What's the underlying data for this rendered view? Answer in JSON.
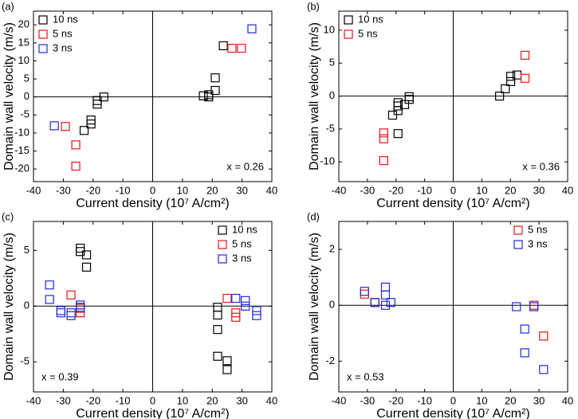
{
  "chart_data": [
    {
      "type": "scatter",
      "label": "(a)",
      "annotation": "x = 0.26",
      "annotation_position": "lower right",
      "legend": "upper left",
      "xlabel": "Current density (10⁷ A/cm²)",
      "ylabel": "Domain wall velocity (m/s)",
      "xlim": [
        -40,
        40
      ],
      "xticks": [
        -40,
        -30,
        -20,
        -10,
        0,
        10,
        20,
        30,
        40
      ],
      "ylim": [
        -23.5,
        23.8
      ],
      "yticks": [
        -20,
        -15,
        -10,
        -5,
        0,
        5,
        10,
        15,
        20
      ],
      "series": [
        {
          "name": "10 ns",
          "color": "#000000",
          "x": [
            -16.4,
            -18.6,
            -18.6,
            -20.7,
            -20.7,
            -23,
            17,
            18.8,
            18.8,
            21,
            21,
            23.7
          ],
          "values": [
            0,
            -1,
            -2,
            -6.4,
            -7.5,
            -9.3,
            0.3,
            0,
            0.6,
            1.8,
            5.3,
            14.2
          ]
        },
        {
          "name": "5 ns",
          "color": "#e8141b",
          "x": [
            -29.3,
            -25.8,
            -25.8,
            26.6,
            29.8
          ],
          "values": [
            -8.2,
            -13.3,
            -19.2,
            13.5,
            13.5
          ]
        },
        {
          "name": "3 ns",
          "color": "#1f2ad6",
          "x": [
            -33,
            33.3
          ],
          "values": [
            -8,
            18.9
          ]
        }
      ]
    },
    {
      "type": "scatter",
      "label": "(b)",
      "annotation": "x = 0.36",
      "annotation_position": "lower right",
      "legend": "upper left",
      "xlabel": "Current density (10⁷ A/cm²)",
      "ylabel": "Domain wall velocity (m/s)",
      "xlim": [
        -40,
        40
      ],
      "xticks": [
        -40,
        -30,
        -20,
        -10,
        0,
        10,
        20,
        30,
        40
      ],
      "ylim": [
        -13,
        12.9
      ],
      "yticks": [
        -10,
        -5,
        0,
        5,
        10
      ],
      "series": [
        {
          "name": "10 ns",
          "color": "#000000",
          "x": [
            -21.2,
            -19.3,
            -19.3,
            -19.3,
            -17,
            -15.4,
            -15.4,
            -19.3,
            16.2,
            18.2,
            20.1,
            20.1,
            22.3
          ],
          "values": [
            -2.9,
            -2.2,
            -1.5,
            -1,
            -1.3,
            -0.1,
            -0.5,
            -5.7,
            0,
            1.1,
            2.2,
            3,
            3.2
          ]
        },
        {
          "name": "5 ns",
          "color": "#e8141b",
          "x": [
            -24.3,
            -24.3,
            -24.3,
            25.1,
            25.1
          ],
          "values": [
            -5.6,
            -6.5,
            -9.8,
            6.2,
            2.7
          ]
        }
      ]
    },
    {
      "type": "scatter",
      "label": "(c)",
      "annotation": "x = 0.39",
      "annotation_position": "lower left",
      "legend": "upper right",
      "xlabel": "Current density (10⁷ A/cm²)",
      "ylabel": "Domain wall velocity (m/s)",
      "xlim": [
        -40,
        40
      ],
      "xticks": [
        -40,
        -30,
        -20,
        -10,
        0,
        10,
        20,
        30,
        40
      ],
      "ylim": [
        -7.7,
        7.6
      ],
      "yticks": [
        -5,
        0,
        5
      ],
      "series": [
        {
          "name": "10 ns",
          "color": "#000000",
          "x": [
            -24.3,
            -24.3,
            -22.2,
            -22.2,
            21.8,
            21.8,
            21.8,
            21.8,
            25,
            25
          ],
          "values": [
            5.2,
            4.9,
            4.6,
            3.5,
            -2.1,
            -0.8,
            -0.1,
            -4.5,
            -4.9,
            -5.7
          ]
        },
        {
          "name": "5 ns",
          "color": "#e8141b",
          "x": [
            -27.4,
            -24.3,
            -24.3,
            25,
            27.9,
            27.9
          ],
          "values": [
            1,
            -0.2,
            -0.6,
            0.7,
            -0.6,
            -1
          ]
        },
        {
          "name": "3 ns",
          "color": "#1f2ad6",
          "x": [
            -34.6,
            -34.6,
            -30.8,
            -30.8,
            -27.4,
            -27.4,
            -24.3,
            -24.3,
            27.9,
            31.1,
            31.1,
            34.9,
            34.9
          ],
          "values": [
            1.9,
            0.6,
            -0.4,
            -0.6,
            -0.6,
            -0.85,
            0.1,
            -0.1,
            0.7,
            0.5,
            0,
            -0.4,
            -0.85
          ]
        }
      ]
    },
    {
      "type": "scatter",
      "label": "(d)",
      "annotation": "x = 0.53",
      "annotation_position": "lower left",
      "legend": "upper right",
      "xlabel": "Current density (10⁷ A/cm²)",
      "ylabel": "Domain wall velocity (m/s)",
      "xlim": [
        -40,
        40
      ],
      "xticks": [
        -40,
        -30,
        -20,
        -10,
        0,
        10,
        20,
        30,
        40
      ],
      "ylim": [
        -3.1,
        3.0
      ],
      "yticks": [
        -2,
        0,
        2
      ],
      "series": [
        {
          "name": "5 ns",
          "color": "#e8141b",
          "x": [
            -31,
            -27.4,
            28.2,
            31.6
          ],
          "values": [
            0.4,
            0.1,
            0,
            -1.1
          ]
        },
        {
          "name": "3 ns",
          "color": "#1f2ad6",
          "x": [
            -31,
            -27.4,
            -23.7,
            -23.7,
            -23.7,
            -21.8,
            22.1,
            28.2,
            25,
            25,
            31.6
          ],
          "values": [
            0.5,
            0.1,
            0.65,
            0.37,
            0,
            0.1,
            -0.05,
            -0.05,
            -0.85,
            -1.7,
            -2.3
          ]
        }
      ]
    }
  ]
}
